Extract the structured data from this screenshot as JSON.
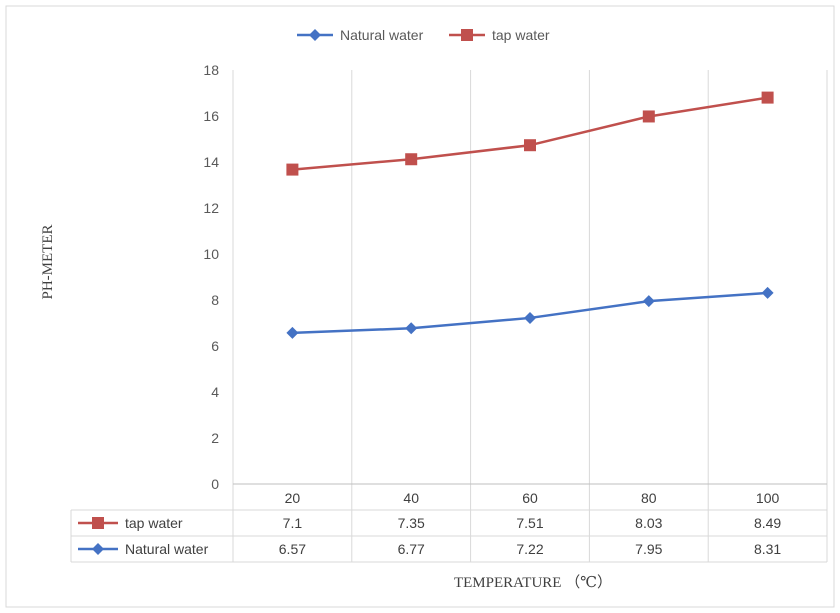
{
  "chart_data": {
    "type": "line",
    "title": "",
    "xlabel": "TEMPERATURE （℃）",
    "ylabel": "PH-METER",
    "categories": [
      "20",
      "40",
      "60",
      "80",
      "100"
    ],
    "ylim": [
      0,
      18
    ],
    "yticks": [
      0,
      2,
      4,
      6,
      8,
      10,
      12,
      14,
      16,
      18
    ],
    "stacked": true,
    "grid": "vertical",
    "legend_position": "top",
    "data_table": true,
    "series": [
      {
        "name": "Natural water",
        "values": [
          6.57,
          6.77,
          7.22,
          7.95,
          8.31
        ],
        "color": "#4472c4",
        "marker": "diamond"
      },
      {
        "name": "tap water",
        "values": [
          7.1,
          7.35,
          7.51,
          8.03,
          8.49
        ],
        "color": "#c0504d",
        "marker": "square"
      }
    ]
  }
}
